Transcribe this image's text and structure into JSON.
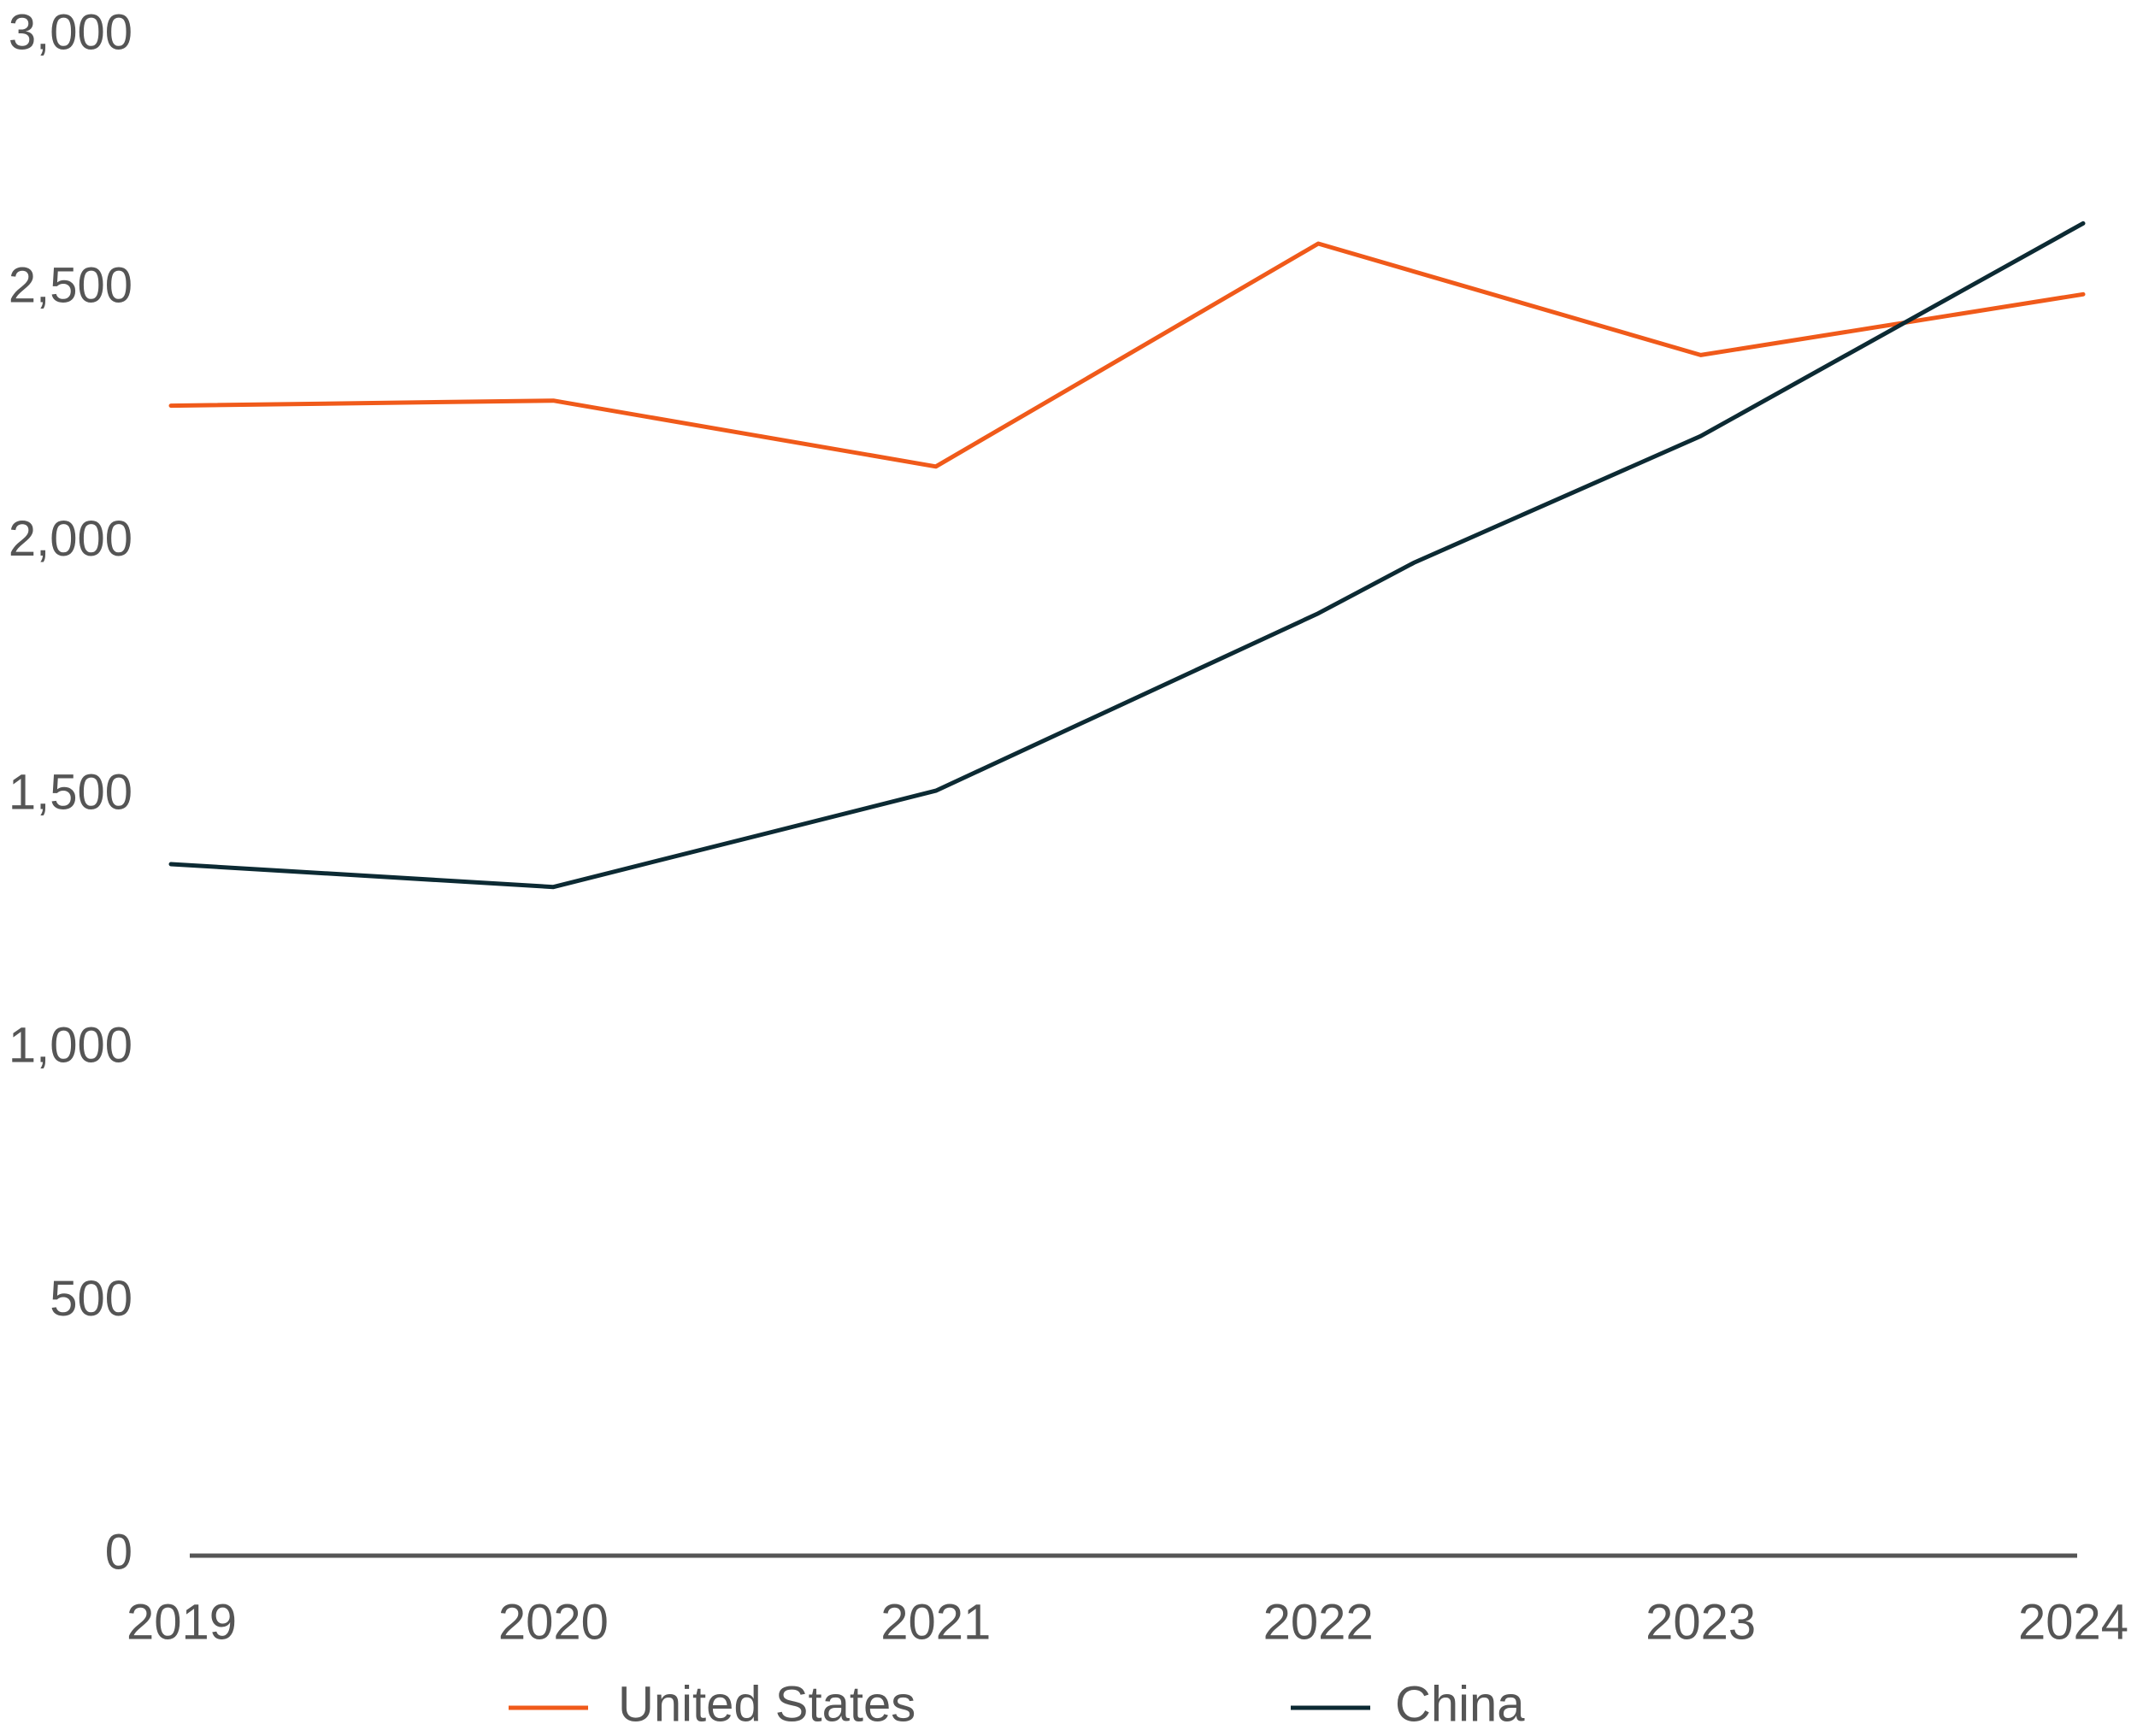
{
  "chart_data": {
    "type": "line",
    "categories": [
      "2019",
      "2020",
      "2021",
      "2022",
      "2023",
      "2024"
    ],
    "x_tick_labels": [
      "2019",
      "2020",
      "2021",
      "2022",
      "2023",
      "2024"
    ],
    "y_tick_labels": [
      "0",
      "500",
      "1,000",
      "1,500",
      "2,000",
      "2,500",
      "3,000"
    ],
    "y_ticks": [
      0,
      500,
      1000,
      1500,
      2000,
      2500,
      3000
    ],
    "ylim": [
      0,
      3000
    ],
    "grid": false,
    "legend_position": "bottom",
    "series": [
      {
        "name": "United States",
        "color": "#f05a1a",
        "points": [
          {
            "x": 2019.0,
            "y": 2270
          },
          {
            "x": 2020.0,
            "y": 2280
          },
          {
            "x": 2021.0,
            "y": 2150
          },
          {
            "x": 2022.0,
            "y": 2590
          },
          {
            "x": 2023.0,
            "y": 2370
          },
          {
            "x": 2024.0,
            "y": 2490
          }
        ]
      },
      {
        "name": "China",
        "color": "#0c2a33",
        "points": [
          {
            "x": 2019.0,
            "y": 1365
          },
          {
            "x": 2020.0,
            "y": 1320
          },
          {
            "x": 2021.0,
            "y": 1510
          },
          {
            "x": 2022.0,
            "y": 1860
          },
          {
            "x": 2022.25,
            "y": 1960
          },
          {
            "x": 2023.0,
            "y": 2210
          },
          {
            "x": 2024.0,
            "y": 2630
          }
        ]
      }
    ]
  }
}
